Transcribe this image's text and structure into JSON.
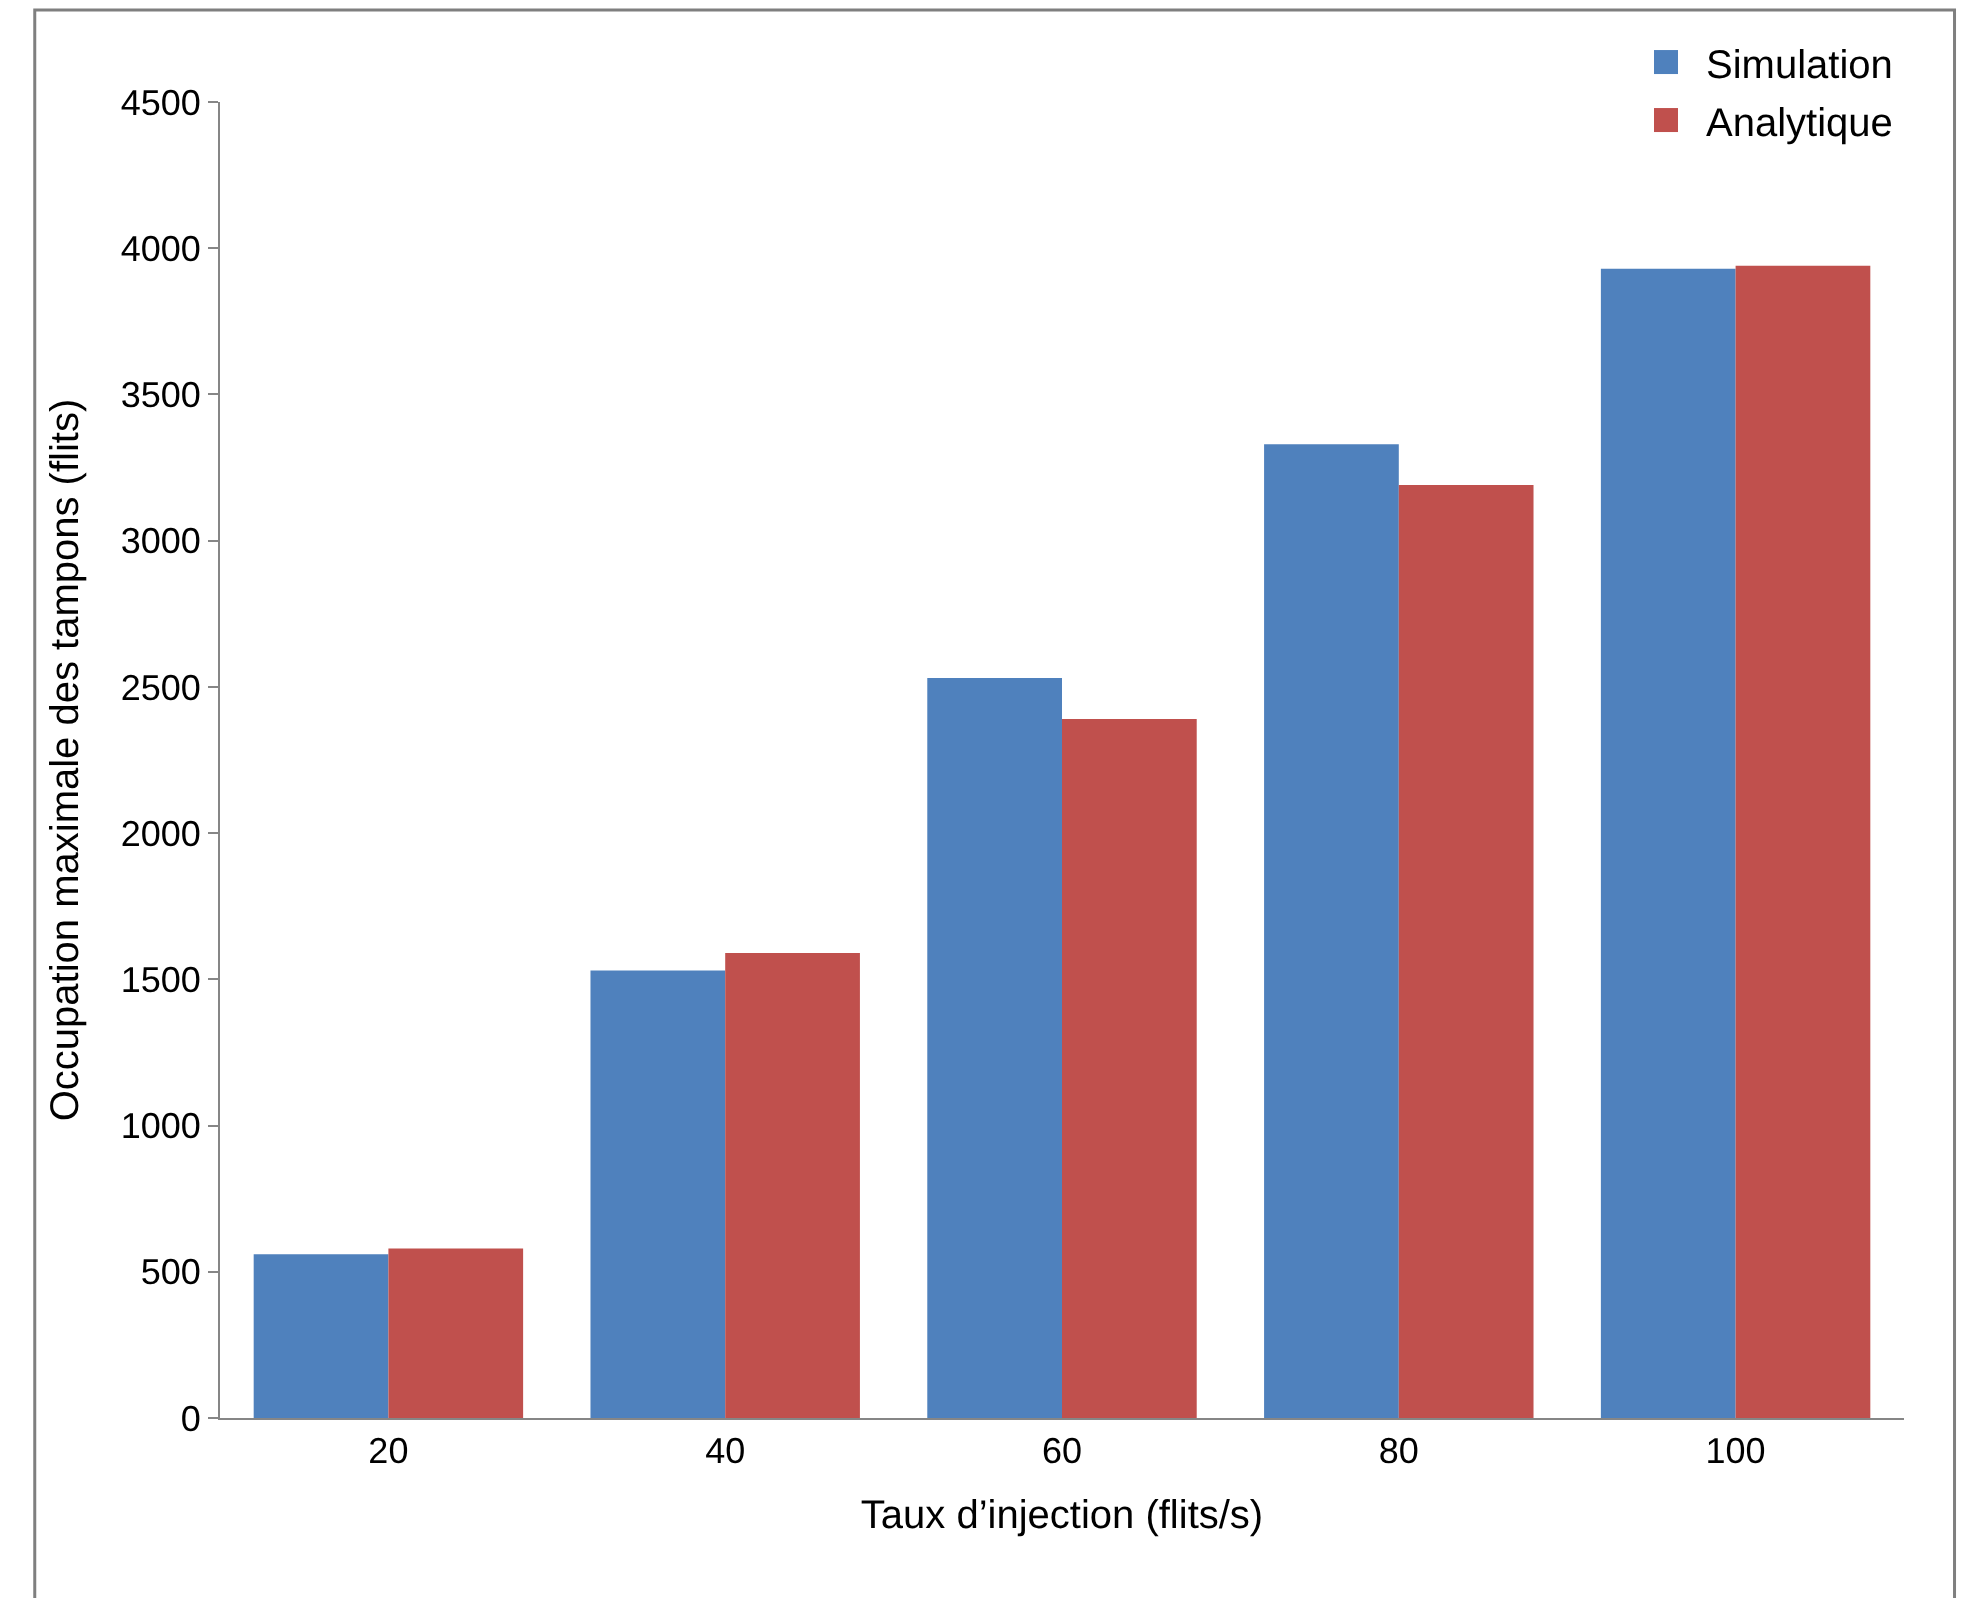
{
  "chart_data": {
    "type": "bar",
    "xlabel": "Taux d’injection (flits/s)",
    "ylabel": "Occupation maximale des tampons (flits)",
    "categories": [
      "20",
      "40",
      "60",
      "80",
      "100"
    ],
    "series": [
      {
        "name": "Simulation",
        "color": "#4f81bd",
        "values": [
          560,
          1530,
          2530,
          3330,
          3930
        ]
      },
      {
        "name": "Analytique",
        "color": "#c0504d",
        "values": [
          580,
          1590,
          2390,
          3190,
          3940
        ]
      }
    ],
    "ylim": [
      0,
      4500
    ],
    "yticks": [
      0,
      500,
      1000,
      1500,
      2000,
      2500,
      3000,
      3500,
      4000,
      4500
    ],
    "grid": false,
    "legend": "top right"
  }
}
